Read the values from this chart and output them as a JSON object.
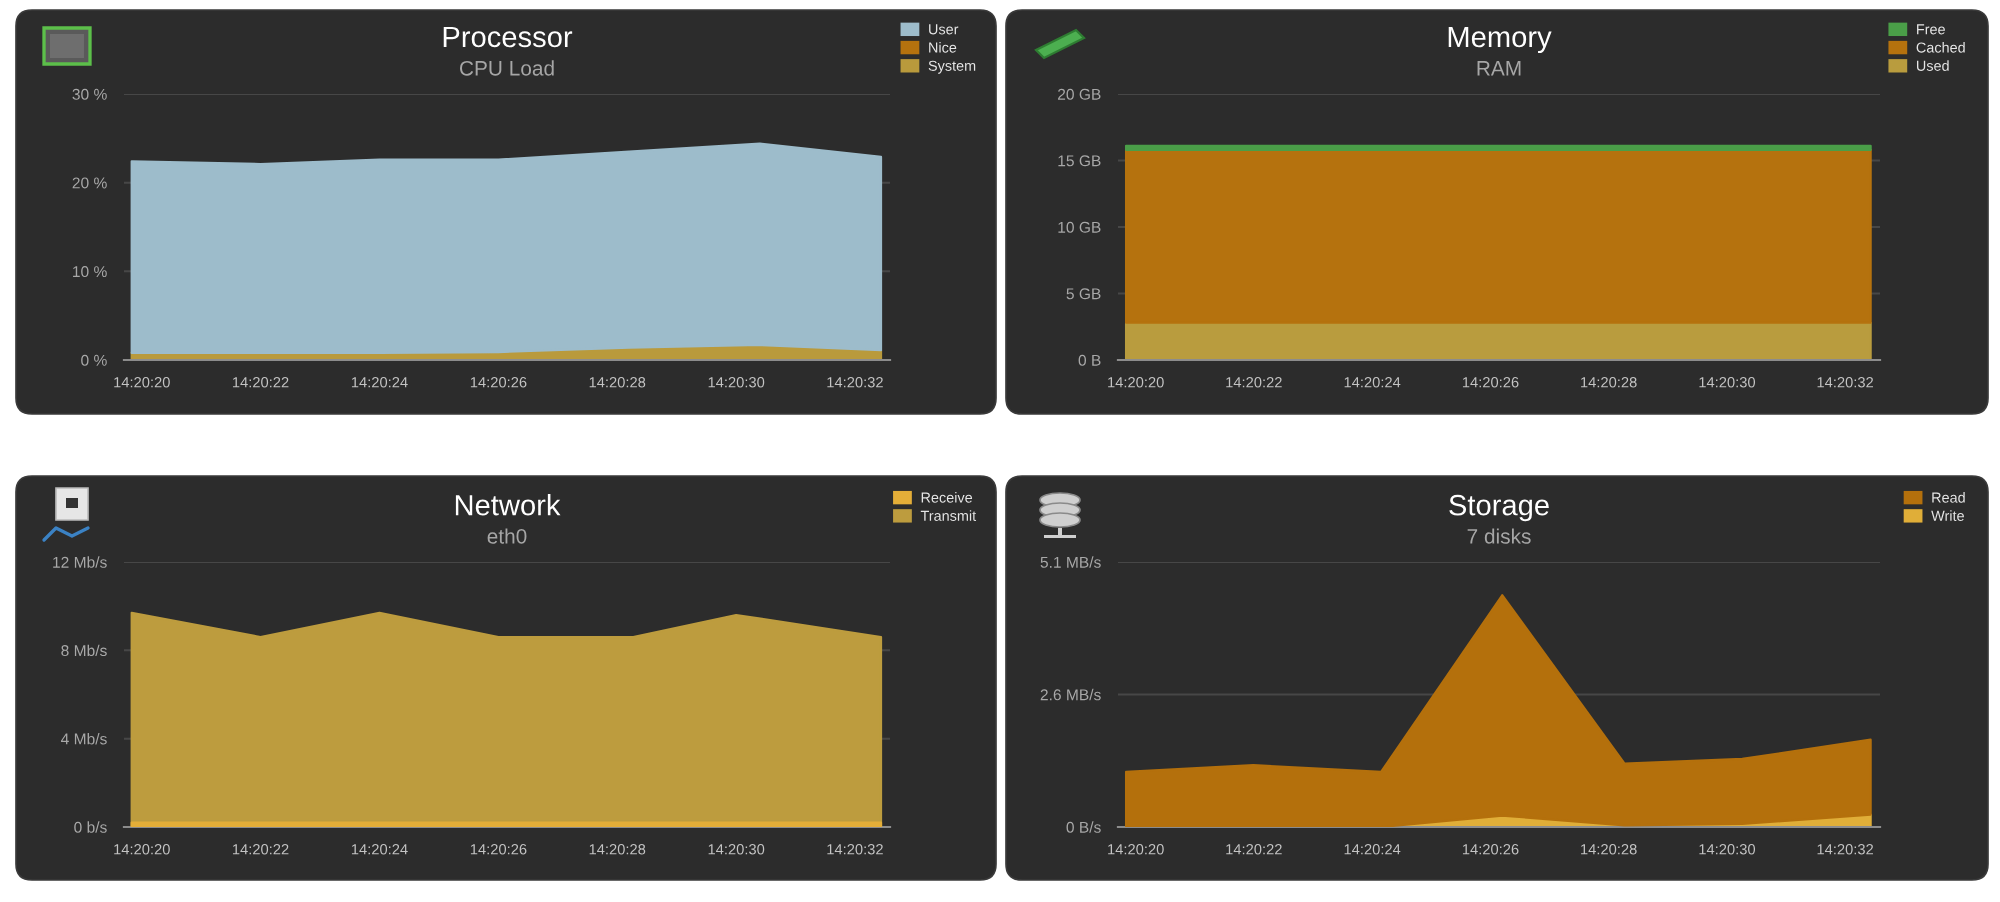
{
  "chart_data": [
    {
      "type": "area",
      "title": "Processor",
      "subtitle": "CPU Load",
      "stacked": true,
      "grid": "y",
      "legend": "top right",
      "x": [
        14.338842,
        14.339444,
        14.34,
        14.340556,
        14.341167,
        14.341778,
        14.342344
      ],
      "xlim": [
        14.338806,
        14.342386
      ],
      "xticks": [
        {
          "value": 14.338889,
          "label": "14:20:20"
        },
        {
          "value": 14.339444,
          "label": "14:20:22"
        },
        {
          "value": 14.34,
          "label": "14:20:24"
        },
        {
          "value": 14.340556,
          "label": "14:20:26"
        },
        {
          "value": 14.341111,
          "label": "14:20:28"
        },
        {
          "value": 14.341667,
          "label": "14:20:30"
        },
        {
          "value": 14.342222,
          "label": "14:20:32"
        }
      ],
      "ylim": [
        0,
        30
      ],
      "yticks": [
        {
          "value": 0,
          "label": "0 %"
        },
        {
          "value": 10,
          "label": "10 %"
        },
        {
          "value": 20,
          "label": "20 %"
        },
        {
          "value": 30,
          "label": "30 %"
        }
      ],
      "series": [
        {
          "name": "System",
          "color": "#b99a3c",
          "values": [
            0.8,
            0.8,
            0.8,
            0.9,
            1.4,
            1.7,
            1.1
          ]
        },
        {
          "name": "Nice",
          "color": "#b5720e",
          "values": [
            null,
            null,
            null,
            null,
            null,
            null,
            null
          ]
        },
        {
          "name": "User",
          "color": "#9dbccb",
          "values": [
            21.6,
            21.3,
            21.8,
            21.7,
            22.1,
            22.7,
            21.8
          ]
        }
      ]
    },
    {
      "type": "area",
      "title": "Memory",
      "subtitle": "RAM",
      "stacked": true,
      "grid": "y",
      "legend": "top right",
      "x": [
        14.338844,
        14.339442,
        14.340042,
        14.340611,
        14.341186,
        14.341739,
        14.342342
      ],
      "xlim": [
        14.338806,
        14.342386
      ],
      "xticks": [
        {
          "value": 14.338889,
          "label": "14:20:20"
        },
        {
          "value": 14.339444,
          "label": "14:20:22"
        },
        {
          "value": 14.34,
          "label": "14:20:24"
        },
        {
          "value": 14.340556,
          "label": "14:20:26"
        },
        {
          "value": 14.341111,
          "label": "14:20:28"
        },
        {
          "value": 14.341667,
          "label": "14:20:30"
        },
        {
          "value": 14.342222,
          "label": "14:20:32"
        }
      ],
      "ylim": [
        0,
        20
      ],
      "yticks": [
        {
          "value": 0,
          "label": "0 B"
        },
        {
          "value": 5,
          "label": "5 GB"
        },
        {
          "value": 10,
          "label": "10 GB"
        },
        {
          "value": 15,
          "label": "15 GB"
        },
        {
          "value": 20,
          "label": "20 GB"
        }
      ],
      "series": [
        {
          "name": "Used",
          "color": "#b99c3e",
          "values": [
            2.8,
            2.8,
            2.8,
            2.8,
            2.8,
            2.8,
            2.8
          ]
        },
        {
          "name": "Cached",
          "color": "#b5720e",
          "values": [
            13.0,
            13.0,
            13.0,
            13.0,
            13.0,
            13.0,
            13.0
          ]
        },
        {
          "name": "Free",
          "color": "#4a9e48",
          "values": [
            0.3,
            0.3,
            0.3,
            0.3,
            0.3,
            0.3,
            0.3
          ]
        }
      ]
    },
    {
      "type": "area",
      "title": "Network",
      "subtitle": "eth0",
      "grid": "y",
      "legend": "top right",
      "x": [
        14.338842,
        14.339444,
        14.34,
        14.340556,
        14.341186,
        14.341667,
        14.342344
      ],
      "xlim": [
        14.338806,
        14.342386
      ],
      "xticks": [
        {
          "value": 14.338889,
          "label": "14:20:20"
        },
        {
          "value": 14.339444,
          "label": "14:20:22"
        },
        {
          "value": 14.34,
          "label": "14:20:24"
        },
        {
          "value": 14.340556,
          "label": "14:20:26"
        },
        {
          "value": 14.341111,
          "label": "14:20:28"
        },
        {
          "value": 14.341667,
          "label": "14:20:30"
        },
        {
          "value": 14.342222,
          "label": "14:20:32"
        }
      ],
      "ylim": [
        0,
        12
      ],
      "yticks": [
        {
          "value": 0,
          "label": "0 b/s"
        },
        {
          "value": 4,
          "label": "4 Mb/s"
        },
        {
          "value": 8,
          "label": "8 Mb/s"
        },
        {
          "value": 12,
          "label": "12 Mb/s"
        }
      ],
      "series": [
        {
          "name": "Transmit",
          "color": "#bd9c3e",
          "values": [
            9.7,
            8.6,
            9.7,
            8.6,
            8.6,
            9.6,
            8.6
          ]
        },
        {
          "name": "Receive",
          "color": "#e4ae38",
          "values": [
            0.2,
            0.2,
            0.2,
            0.2,
            0.2,
            0.2,
            0.2
          ]
        }
      ]
    },
    {
      "type": "area",
      "title": "Storage",
      "subtitle": "7 disks",
      "stacked": true,
      "grid": "y",
      "legend": "top right",
      "x": [
        14.338844,
        14.339442,
        14.340042,
        14.340611,
        14.341186,
        14.341739,
        14.342342
      ],
      "xlim": [
        14.338806,
        14.342386
      ],
      "xticks": [
        {
          "value": 14.338889,
          "label": "14:20:20"
        },
        {
          "value": 14.339444,
          "label": "14:20:22"
        },
        {
          "value": 14.34,
          "label": "14:20:24"
        },
        {
          "value": 14.340556,
          "label": "14:20:26"
        },
        {
          "value": 14.341111,
          "label": "14:20:28"
        },
        {
          "value": 14.341667,
          "label": "14:20:30"
        },
        {
          "value": 14.342222,
          "label": "14:20:32"
        }
      ],
      "ylim": [
        0,
        5.1
      ],
      "yticks": [
        {
          "value": 0,
          "label": "0 B/s"
        },
        {
          "value": 2.55,
          "label": "2.6 MB/s"
        },
        {
          "value": 5.1,
          "label": "5.1 MB/s"
        }
      ],
      "series": [
        {
          "name": "Write",
          "color": "#e0ae38",
          "values": [
            0,
            0,
            0,
            0.22,
            0.03,
            0.06,
            0.24
          ]
        },
        {
          "name": "Read",
          "color": "#b4700c",
          "values": [
            1.06,
            1.19,
            1.06,
            4.24,
            1.19,
            1.25,
            1.44
          ]
        }
      ]
    }
  ]
}
